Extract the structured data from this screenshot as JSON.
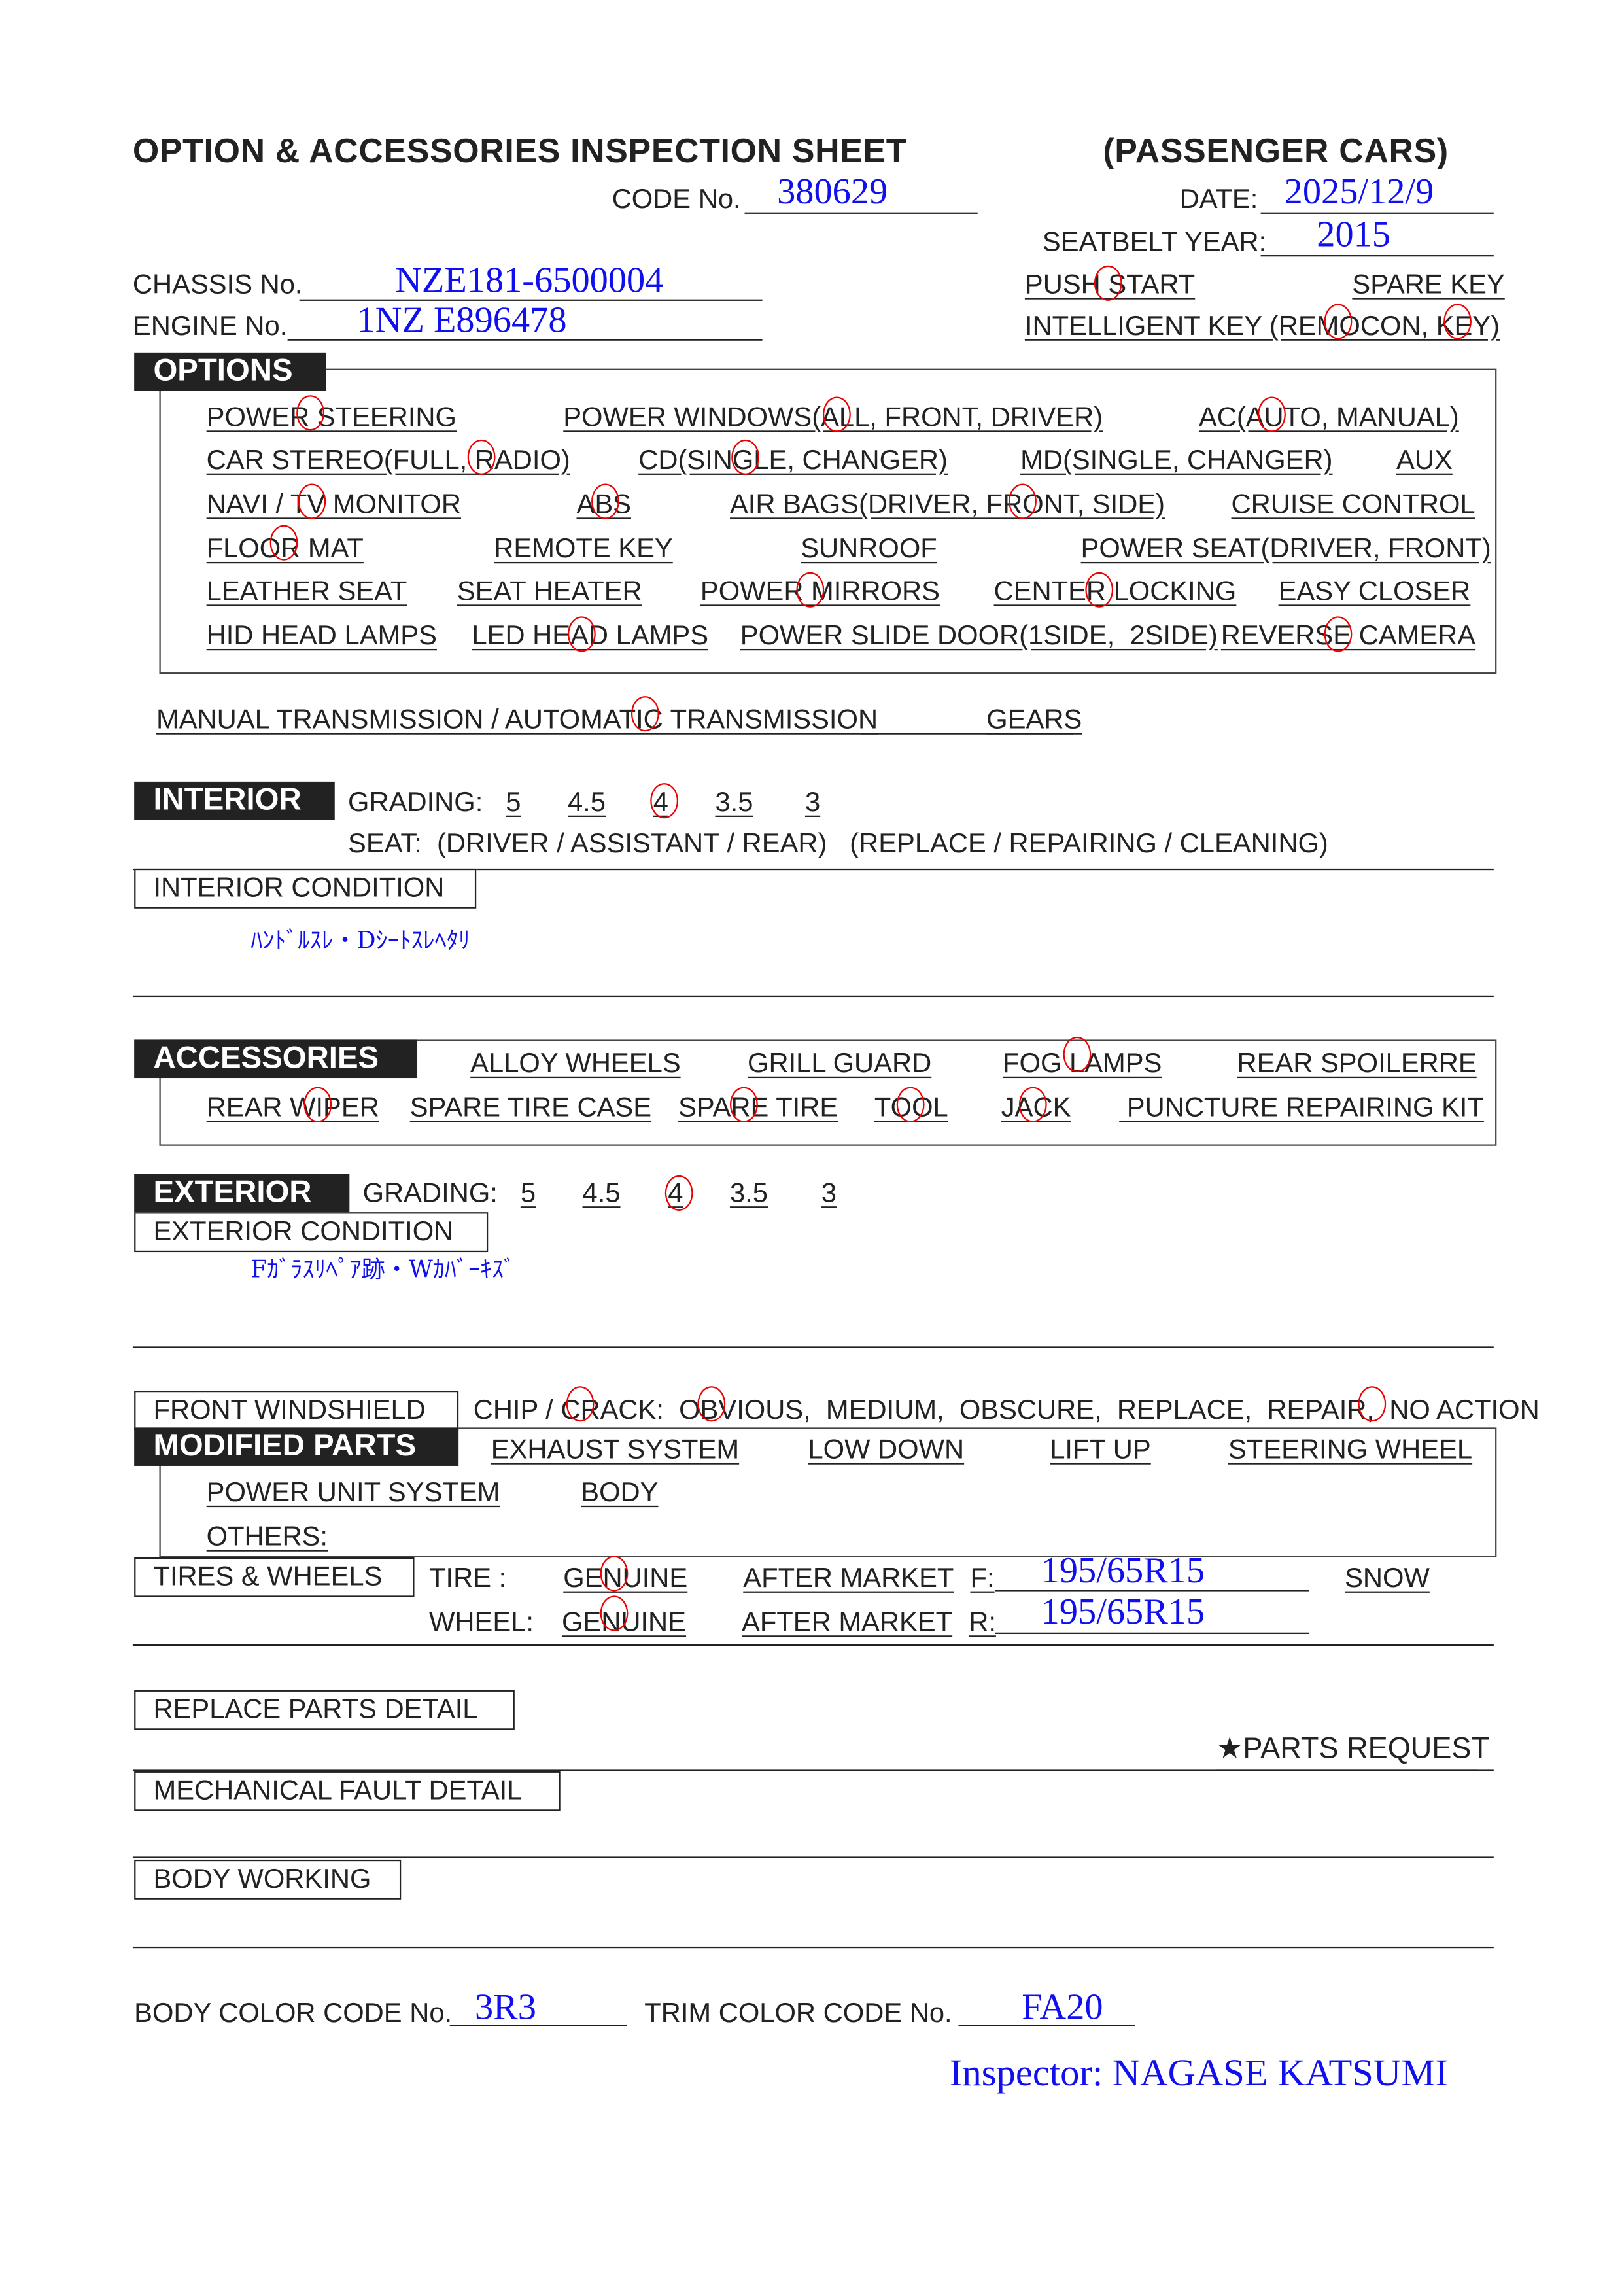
{
  "header": {
    "title": "OPTION & ACCESSORIES INSPECTION SHEET",
    "category": "(PASSENGER CARS)",
    "code_label": "CODE No.",
    "code_value": "380629",
    "date_label": "DATE:",
    "date_value": "2025/12/9",
    "seatbelt_label": "SEATBELT YEAR:",
    "seatbelt_value": "2015",
    "chassis_label": "CHASSIS No.",
    "chassis_value": "NZE181-6500004",
    "engine_label": "ENGINE No.",
    "engine_value": "1NZ E896478",
    "push_start": "PUSH START",
    "spare_key": "SPARE KEY",
    "intelligent_key": "INTELLIGENT KEY (REMOCON, KEY)"
  },
  "options": {
    "label": "OPTIONS",
    "items": [
      "POWER STEERING",
      "POWER WINDOWS(ALL, FRONT, DRIVER)",
      "AC(AUTO, MANUAL)",
      "CAR STEREO(FULL, RADIO)",
      "CD(SINGLE, CHANGER)",
      "MD(SINGLE, CHANGER)",
      "AUX",
      "NAVI / TV MONITOR",
      "ABS",
      "AIR BAGS(DRIVER, FRONT, SIDE)",
      "CRUISE CONTROL",
      "FLOOR MAT",
      "REMOTE KEY",
      "SUNROOF",
      "POWER SEAT(DRIVER, FRONT)",
      "LEATHER SEAT",
      "SEAT HEATER",
      "POWER MIRRORS",
      "CENTER LOCKING",
      "EASY CLOSER",
      "HID HEAD LAMPS",
      "LED HEAD LAMPS",
      "POWER SLIDE DOOR(1SIDE,  2SIDE)",
      "REVERSE CAMERA"
    ],
    "circled": [
      "POWER STEERING",
      "ALL",
      "AUTO",
      "RADIO",
      "SINGLE",
      "TV",
      "ABS",
      "FRONT",
      "FLOOR MAT",
      "POWER MIRRORS",
      "CENTER LOCKING",
      "LED HEAD LAMPS",
      "REVERSE CAMERA"
    ]
  },
  "transmission": {
    "text": "MANUAL TRANSMISSION / AUTOMATIC TRANSMISSION",
    "gears": "GEARS",
    "circled": "AUTOMATIC TRANSMISSION"
  },
  "interior": {
    "label": "INTERIOR",
    "grading_label": "GRADING:",
    "grades": [
      "5",
      "4.5",
      "4",
      "3.5",
      "3"
    ],
    "selected_grade": "4",
    "seat": "SEAT:  (DRIVER / ASSISTANT / REAR)   (REPLACE / REPAIRING / CLEANING)",
    "condition_label": "INTERIOR CONDITION",
    "condition_note": "ﾊﾝﾄﾞﾙｽﾚ・Dｼｰﾄｽﾚﾍﾀﾘ"
  },
  "accessories": {
    "label": "ACCESSORIES",
    "items": [
      "ALLOY WHEELS",
      "GRILL GUARD",
      "FOG LAMPS",
      "REAR SPOILERRE",
      "REAR WIPER",
      "SPARE TIRE CASE",
      "SPARE TIRE",
      "TOOL",
      "JACK",
      " PUNCTURE REPAIRING KIT"
    ],
    "circled": [
      "FOG LAMPS",
      "REAR WIPER",
      "SPARE TIRE",
      "TOOL",
      "JACK"
    ]
  },
  "exterior": {
    "label": "EXTERIOR",
    "grading_label": "GRADING:",
    "grades": [
      "5",
      "4.5",
      "4",
      "3.5",
      "3"
    ],
    "selected_grade": "4",
    "condition_label": "EXTERIOR CONDITION",
    "condition_note": "Fｶﾞﾗｽﾘﾍﾟｱ跡・Wｶﾊﾞｰｷｽﾞ"
  },
  "windshield": {
    "label": "FRONT WINDSHIELD",
    "text": "CHIP / CRACK:  OBVIOUS,  MEDIUM,  OBSCURE,  REPLACE,  REPAIR,  NO ACTION",
    "circled": [
      "CRACK",
      "OBVIOUS",
      "NO ACTION"
    ]
  },
  "modified": {
    "label": "MODIFIED PARTS",
    "items": [
      "EXHAUST SYSTEM",
      "LOW DOWN",
      "LIFT UP",
      "STEERING WHEEL",
      "POWER UNIT SYSTEM",
      "BODY",
      "OTHERS:"
    ]
  },
  "tires": {
    "label": "TIRES & WHEELS",
    "tire_label": "TIRE :",
    "wheel_label": "WHEEL:",
    "genuine": "GENUINE",
    "after_market": "AFTER MARKET",
    "front_label": "F:",
    "front_value": "195/65R15",
    "rear_label": "R:",
    "rear_value": "195/65R15",
    "snow": "SNOW",
    "tire_selected": "GENUINE",
    "wheel_selected": "GENUINE"
  },
  "sections": {
    "replace_parts": "REPLACE PARTS DETAIL",
    "parts_request": "★PARTS REQUEST",
    "mechanical_fault": "MECHANICAL FAULT DETAIL",
    "body_working": "BODY WORKING"
  },
  "colors": {
    "body_label": "BODY COLOR CODE No.",
    "body_value": "3R3",
    "trim_label": "TRIM COLOR CODE No.",
    "trim_value": "FA20"
  },
  "inspector": "Inspector: NAGASE KATSUMI",
  "style": {
    "handwriting_color": "#1010ee",
    "circle_color": "#ee0000"
  }
}
